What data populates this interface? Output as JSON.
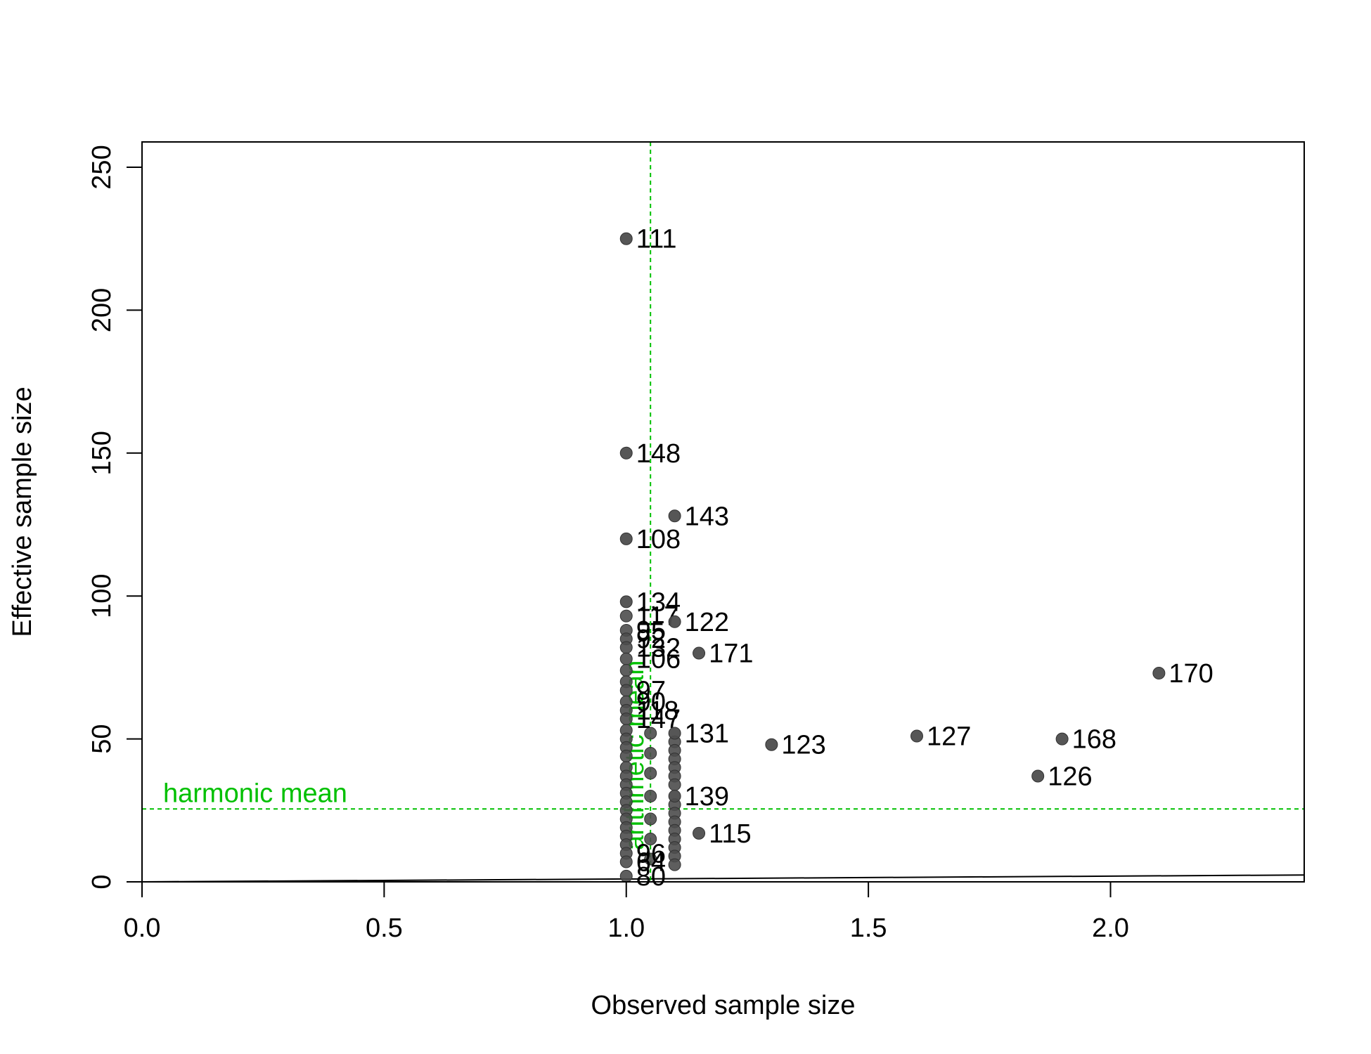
{
  "chart_data": {
    "type": "scatter",
    "title": "",
    "xlabel": "Observed sample size",
    "ylabel": "Effective sample size",
    "xlim": [
      0,
      2.4
    ],
    "ylim": [
      0,
      260
    ],
    "x_ticks": [
      {
        "value": 0.0,
        "label": "0.0"
      },
      {
        "value": 0.5,
        "label": "0.5"
      },
      {
        "value": 1.0,
        "label": "1.0"
      },
      {
        "value": 1.5,
        "label": "1.5"
      },
      {
        "value": 2.0,
        "label": "2.0"
      }
    ],
    "y_ticks": [
      {
        "value": 0,
        "label": "0"
      },
      {
        "value": 50,
        "label": "50"
      },
      {
        "value": 100,
        "label": "100"
      },
      {
        "value": 150,
        "label": "150"
      },
      {
        "value": 200,
        "label": "200"
      },
      {
        "value": 250,
        "label": "250"
      }
    ],
    "grid": false,
    "point_color": "#4d4d4d",
    "reference_color": "#00c000",
    "reference_lines": [
      {
        "orientation": "horizontal",
        "value": 25.5,
        "label": "harmonic mean"
      },
      {
        "orientation": "vertical",
        "value": 1.05,
        "label": "arithmetic mean"
      }
    ],
    "identity_line": {
      "x": [
        0,
        2.4
      ],
      "y": [
        0,
        2.4
      ]
    },
    "labeled_points": [
      {
        "x": 1.0,
        "y": 225,
        "label": "111"
      },
      {
        "x": 1.0,
        "y": 150,
        "label": "148"
      },
      {
        "x": 1.1,
        "y": 128,
        "label": "143"
      },
      {
        "x": 1.0,
        "y": 120,
        "label": "108"
      },
      {
        "x": 1.0,
        "y": 98,
        "label": "134"
      },
      {
        "x": 1.1,
        "y": 91,
        "label": "122"
      },
      {
        "x": 1.15,
        "y": 80,
        "label": "171"
      },
      {
        "x": 2.1,
        "y": 73,
        "label": "170"
      },
      {
        "x": 1.1,
        "y": 52,
        "label": "131"
      },
      {
        "x": 1.3,
        "y": 48,
        "label": "123"
      },
      {
        "x": 1.6,
        "y": 51,
        "label": "127"
      },
      {
        "x": 1.9,
        "y": 50,
        "label": "168"
      },
      {
        "x": 1.85,
        "y": 37,
        "label": "126"
      },
      {
        "x": 1.1,
        "y": 30,
        "label": "139"
      },
      {
        "x": 1.15,
        "y": 17,
        "label": "115"
      }
    ],
    "unlabeled_points": [
      {
        "x": 1.0,
        "y": 93
      },
      {
        "x": 1.0,
        "y": 88
      },
      {
        "x": 1.0,
        "y": 85
      },
      {
        "x": 1.0,
        "y": 82
      },
      {
        "x": 1.0,
        "y": 78
      },
      {
        "x": 1.0,
        "y": 74
      },
      {
        "x": 1.0,
        "y": 70
      },
      {
        "x": 1.0,
        "y": 67
      },
      {
        "x": 1.0,
        "y": 63
      },
      {
        "x": 1.0,
        "y": 60
      },
      {
        "x": 1.0,
        "y": 57
      },
      {
        "x": 1.0,
        "y": 53
      },
      {
        "x": 1.0,
        "y": 50
      },
      {
        "x": 1.0,
        "y": 47
      },
      {
        "x": 1.0,
        "y": 44
      },
      {
        "x": 1.0,
        "y": 40
      },
      {
        "x": 1.0,
        "y": 37
      },
      {
        "x": 1.0,
        "y": 34
      },
      {
        "x": 1.0,
        "y": 31
      },
      {
        "x": 1.0,
        "y": 28
      },
      {
        "x": 1.0,
        "y": 25
      },
      {
        "x": 1.0,
        "y": 22
      },
      {
        "x": 1.0,
        "y": 19
      },
      {
        "x": 1.0,
        "y": 16
      },
      {
        "x": 1.0,
        "y": 13
      },
      {
        "x": 1.0,
        "y": 10
      },
      {
        "x": 1.0,
        "y": 7
      },
      {
        "x": 1.0,
        "y": 2
      },
      {
        "x": 1.05,
        "y": 52
      },
      {
        "x": 1.05,
        "y": 45
      },
      {
        "x": 1.05,
        "y": 38
      },
      {
        "x": 1.05,
        "y": 30
      },
      {
        "x": 1.05,
        "y": 22
      },
      {
        "x": 1.05,
        "y": 15
      },
      {
        "x": 1.05,
        "y": 8
      },
      {
        "x": 1.1,
        "y": 49
      },
      {
        "x": 1.1,
        "y": 46
      },
      {
        "x": 1.1,
        "y": 43
      },
      {
        "x": 1.1,
        "y": 40
      },
      {
        "x": 1.1,
        "y": 37
      },
      {
        "x": 1.1,
        "y": 34
      },
      {
        "x": 1.1,
        "y": 27
      },
      {
        "x": 1.1,
        "y": 24
      },
      {
        "x": 1.1,
        "y": 21
      },
      {
        "x": 1.1,
        "y": 18
      },
      {
        "x": 1.1,
        "y": 15
      },
      {
        "x": 1.1,
        "y": 12
      },
      {
        "x": 1.1,
        "y": 9
      },
      {
        "x": 1.1,
        "y": 6
      }
    ],
    "overlapping_labels": [
      {
        "x": 1.0,
        "y": 93,
        "label": "117"
      },
      {
        "x": 1.0,
        "y": 88,
        "label": "95"
      },
      {
        "x": 1.0,
        "y": 85,
        "label": "92"
      },
      {
        "x": 1.0,
        "y": 82,
        "label": "132"
      },
      {
        "x": 1.0,
        "y": 78,
        "label": "106"
      },
      {
        "x": 1.0,
        "y": 67,
        "label": "97"
      },
      {
        "x": 1.0,
        "y": 63,
        "label": "90"
      },
      {
        "x": 1.0,
        "y": 60,
        "label": "118"
      },
      {
        "x": 1.0,
        "y": 57,
        "label": "147"
      },
      {
        "x": 1.0,
        "y": 10,
        "label": "96"
      },
      {
        "x": 1.0,
        "y": 7,
        "label": "64"
      },
      {
        "x": 1.0,
        "y": 2,
        "label": "80"
      }
    ]
  }
}
